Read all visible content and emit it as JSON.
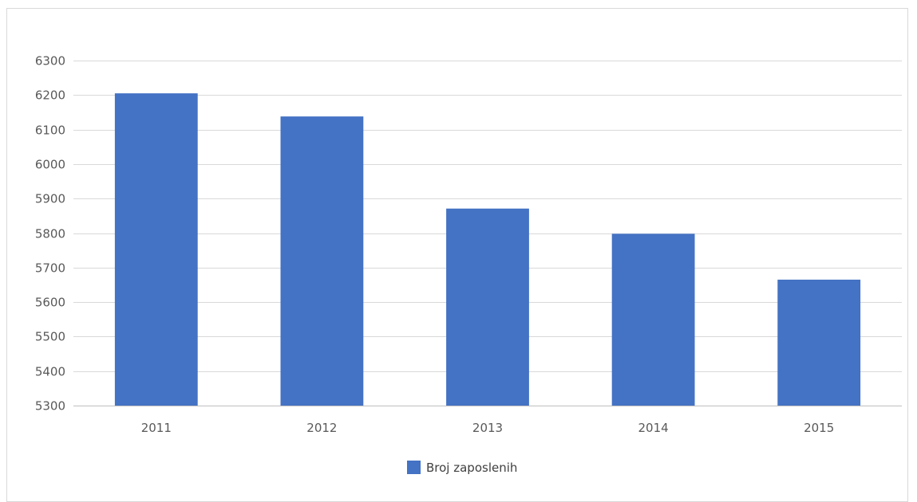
{
  "chart_data": {
    "type": "bar",
    "title": "",
    "xlabel": "",
    "ylabel": "",
    "categories": [
      "2011",
      "2012",
      "2013",
      "2014",
      "2015"
    ],
    "series": [
      {
        "name": "Broj zaposlenih",
        "values": [
          6205,
          6138,
          5871,
          5798,
          5665
        ],
        "color": "#4472C4"
      }
    ],
    "ylim": [
      5300,
      6300
    ],
    "yticks": [
      5300,
      5400,
      5500,
      5600,
      5700,
      5800,
      5900,
      6000,
      6100,
      6200,
      6300
    ],
    "grid": true,
    "legend_position": "bottom"
  }
}
